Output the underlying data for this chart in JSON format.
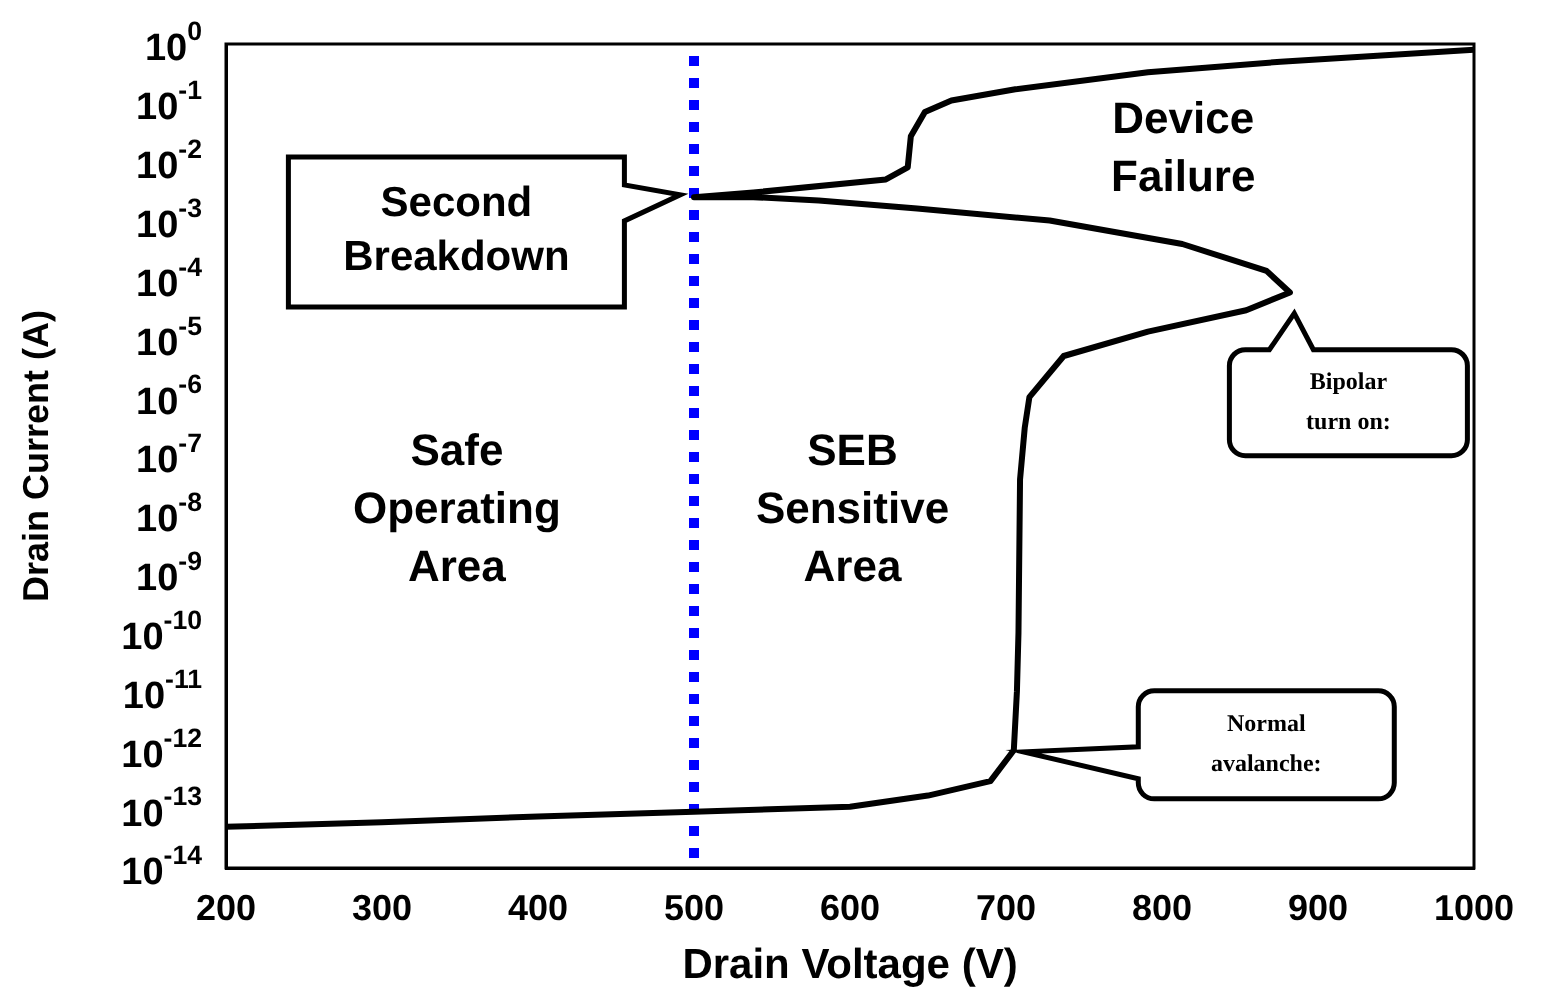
{
  "chart_data": {
    "type": "line",
    "xlabel": "Drain Voltage (V)",
    "ylabel": "Drain Current (A)",
    "log": "y",
    "xlim": [
      200,
      1000
    ],
    "xticks": [
      200,
      300,
      400,
      500,
      600,
      700,
      800,
      900,
      1000
    ],
    "ylim": [
      1e-14,
      1
    ],
    "yticks": [
      {
        "value": 1e-14,
        "label": "10$^{-14}$"
      },
      {
        "value": 1e-13,
        "label": "10$^{-13}$"
      },
      {
        "value": 1e-12,
        "label": "10$^{-12}$"
      },
      {
        "value": 1e-11,
        "label": "10$^{-11}$"
      },
      {
        "value": 1e-10,
        "label": "10$^{-10}$"
      },
      {
        "value": 1e-09,
        "label": "10$^{-9}$"
      },
      {
        "value": 1e-08,
        "label": "10$^{-8}$"
      },
      {
        "value": 1e-07,
        "label": "10$^{-7}$"
      },
      {
        "value": 1e-06,
        "label": "10$^{-6}$"
      },
      {
        "value": 1e-05,
        "label": "10$^{-5}$"
      },
      {
        "value": 0.0001,
        "label": "10$^{-4}$"
      },
      {
        "value": 0.001,
        "label": "10$^{-3}$"
      },
      {
        "value": 0.01,
        "label": "10$^{-2}$"
      },
      {
        "value": 0.1,
        "label": "10$^{-1}$"
      },
      {
        "value": 1,
        "label": "10$^{0}$"
      }
    ],
    "grid": false,
    "legend": false,
    "marker": "none",
    "line_style": "solid",
    "series": [
      {
        "color": "#000000",
        "x": [
          200,
          300,
          400,
          500,
          600,
          650,
          690,
          705,
          707,
          708,
          709,
          712,
          715,
          737,
          791,
          854,
          882,
          867,
          813,
          728,
          643,
          580,
          538,
          500,
          538,
          623,
          637,
          639,
          648,
          665,
          706,
          791,
          876,
          1000
        ],
        "values": [
          5e-14,
          6e-14,
          7.5e-14,
          9e-14,
          1.1e-13,
          1.7e-13,
          3e-13,
          1e-12,
          1e-11,
          1e-10,
          4e-08,
          3e-07,
          1e-06,
          5e-06,
          1.3e-05,
          3e-05,
          6e-05,
          0.00014,
          0.0004,
          0.001,
          0.0016,
          0.0022,
          0.0025,
          0.0025,
          0.003,
          0.005,
          0.008,
          0.027,
          0.07,
          0.11,
          0.17,
          0.33,
          0.5,
          0.8
        ]
      }
    ],
    "ref_lines": [
      {
        "axis": "x",
        "value": 500,
        "color": "#0000ff",
        "line_style": "dotted"
      }
    ],
    "annotations": [
      "Second Breakdown",
      "Bipolar turn on:",
      "Normal avalanche:",
      "Device Failure",
      "Safe Operating Area",
      "SEB Sensitive Area"
    ]
  }
}
